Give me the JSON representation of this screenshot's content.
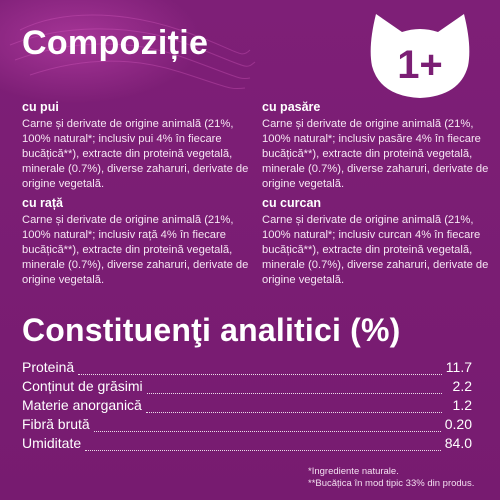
{
  "header": {
    "title": "Compoziție",
    "badge_label": "1+"
  },
  "sections": {
    "pui": {
      "heading": "cu pui",
      "text": "Carne și derivate de origine animală (21%, 100% natural*; inclusiv pui 4% în fiecare bucățică**), extracte din proteină vegetală, minerale (0.7%), diverse zaharuri, derivate de origine vegetală."
    },
    "pasare": {
      "heading": "cu pasăre",
      "text": "Carne și derivate de origine animală (21%, 100% natural*; inclusiv pasăre 4% în fiecare bucățică**), extracte din proteină vegetală, minerale (0.7%), diverse zaharuri, derivate de origine vegetală."
    },
    "rata": {
      "heading": "cu rață",
      "text": "Carne și derivate de origine animală (21%, 100% natural*; inclusiv rață 4% în fiecare bucățică**), extracte din proteină vegetală, minerale (0.7%), diverse zaharuri, derivate de origine vegetală."
    },
    "curcan": {
      "heading": "cu curcan",
      "text": "Carne și derivate de origine animală (21%, 100% natural*; inclusiv curcan 4% în fiecare bucățică**), extracte din proteină vegetală, minerale (0.7%), diverse zaharuri, derivate de origine vegetală."
    }
  },
  "analysis": {
    "title": "Constituenţi analitici (%)",
    "rows": [
      {
        "label": "Proteină",
        "value": "11.7"
      },
      {
        "label": "Conținut de grăsimi",
        "value": "2.2"
      },
      {
        "label": "Materie anorganică",
        "value": "1.2"
      },
      {
        "label": "Fibră brută",
        "value": "0.20"
      },
      {
        "label": "Umiditate",
        "value": "84.0"
      }
    ]
  },
  "footnotes": {
    "note1": "*Ingrediente naturale.",
    "note2": "**Bucățica în mod tipic 33% din produs."
  },
  "colors": {
    "background": "#7b1e74",
    "text": "#ffffff"
  }
}
